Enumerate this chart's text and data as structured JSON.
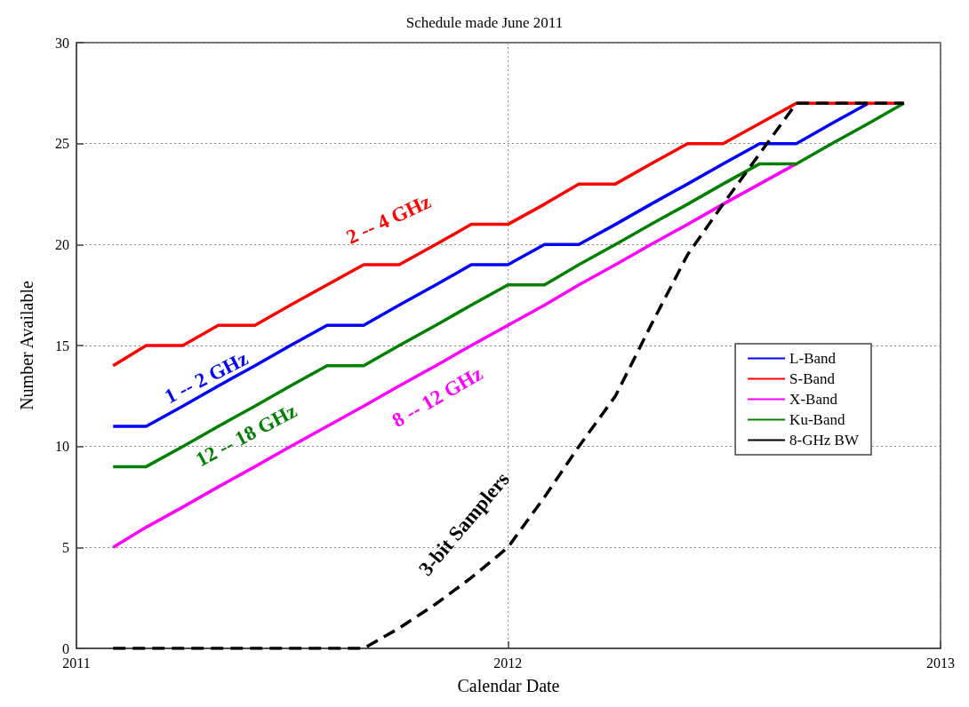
{
  "chart_data": {
    "type": "line",
    "title": "Schedule made June 2011",
    "xlabel": "Calendar Date",
    "ylabel": "Number Available",
    "x": [
      "2011-02",
      "2011-03",
      "2011-04",
      "2011-05",
      "2011-06",
      "2011-07",
      "2011-08",
      "2011-09",
      "2011-10",
      "2011-11",
      "2011-12",
      "2012-01",
      "2012-02",
      "2012-03",
      "2012-04",
      "2012-05",
      "2012-06",
      "2012-07",
      "2012-08",
      "2012-09",
      "2012-10",
      "2012-11",
      "2012-12"
    ],
    "series": [
      {
        "name": "L-Band",
        "color": "#0000ff",
        "values": [
          11,
          11,
          12,
          13,
          14,
          15,
          16,
          16,
          17,
          18,
          19,
          19,
          20,
          20,
          21,
          22,
          23,
          24,
          25,
          25,
          26,
          27,
          null
        ]
      },
      {
        "name": "S-Band",
        "color": "#ff0000",
        "values": [
          14,
          15,
          15,
          16,
          16,
          17,
          18,
          19,
          19,
          20,
          21,
          21,
          22,
          23,
          23,
          24,
          25,
          25,
          26,
          27,
          27,
          27,
          27
        ]
      },
      {
        "name": "X-Band",
        "color": "#ff00ff",
        "values": [
          5,
          6,
          7,
          8,
          9,
          10,
          11,
          12,
          13,
          14,
          15,
          16,
          17,
          18,
          19,
          20,
          21,
          22,
          23,
          24,
          null,
          null,
          null
        ]
      },
      {
        "name": "Ku-Band",
        "color": "#008000",
        "values": [
          9,
          9,
          10,
          11,
          12,
          13,
          14,
          14,
          15,
          16,
          17,
          18,
          18,
          19,
          20,
          21,
          22,
          23,
          24,
          24,
          25,
          26,
          27
        ]
      },
      {
        "name": "8-GHz BW",
        "color": "#000000",
        "line_style": "dashed",
        "values": [
          0,
          0,
          0,
          0,
          0,
          0,
          0,
          0,
          1,
          2.2,
          3.5,
          5,
          7.5,
          10,
          12.5,
          16,
          19.5,
          22,
          24.5,
          27,
          27,
          27,
          27
        ]
      }
    ],
    "xlim": [
      "2011",
      "2013"
    ],
    "xticks": [
      "2011",
      "2012",
      "2013"
    ],
    "ylim": [
      0,
      30
    ],
    "yticks": [
      0,
      5,
      10,
      15,
      20,
      25,
      30
    ],
    "grid": true,
    "legend": "right",
    "marker": "none",
    "line_style": "solid",
    "annotations": [
      "1 -- 2 GHz",
      "2 -- 4 GHz",
      "8 -- 12 GHz",
      "12 -- 18 GHz",
      "3-bit Samplers"
    ]
  }
}
